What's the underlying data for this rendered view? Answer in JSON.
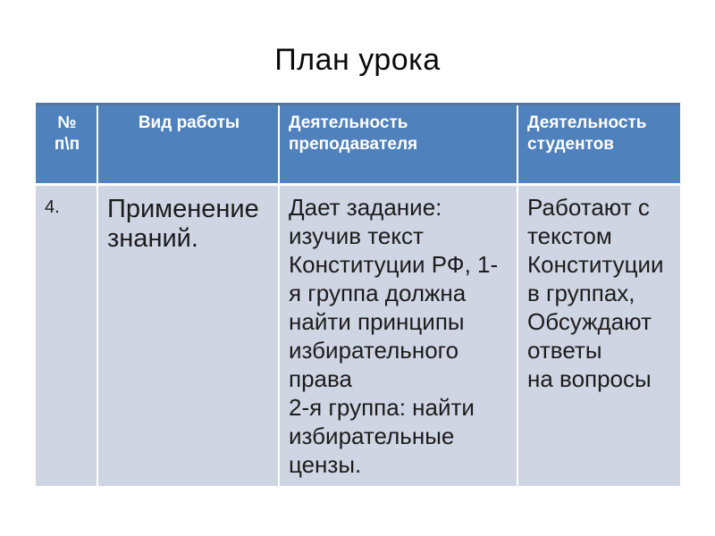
{
  "title": "План урока",
  "table": {
    "headers": [
      {
        "label": "№\nп\\п"
      },
      {
        "label": "Вид работы"
      },
      {
        "label": "Деятельность\nпреподавателя"
      },
      {
        "label": "Деятельность\nстудентов"
      }
    ],
    "row": {
      "num": "4.",
      "work_type": "Применение\nзнаний.",
      "teacher_activity": "Дает задание:\nизучив текст\nКонституции РФ, 1-\nя группа должна\nнайти принципы\nизбирательного\nправа\n2-я группа: найти\nизбирательные\nцензы.",
      "student_activity": "Работают с\nтекстом\nКонституции\nв группах,\nОбсуждают\nответы\nна вопросы"
    }
  },
  "colors": {
    "header_bg": "#4F81BD",
    "header_text": "#FFFFFF",
    "body_bg": "#D0D5E4",
    "body_text": "#1C1C1C",
    "top_border": "#54779E"
  }
}
